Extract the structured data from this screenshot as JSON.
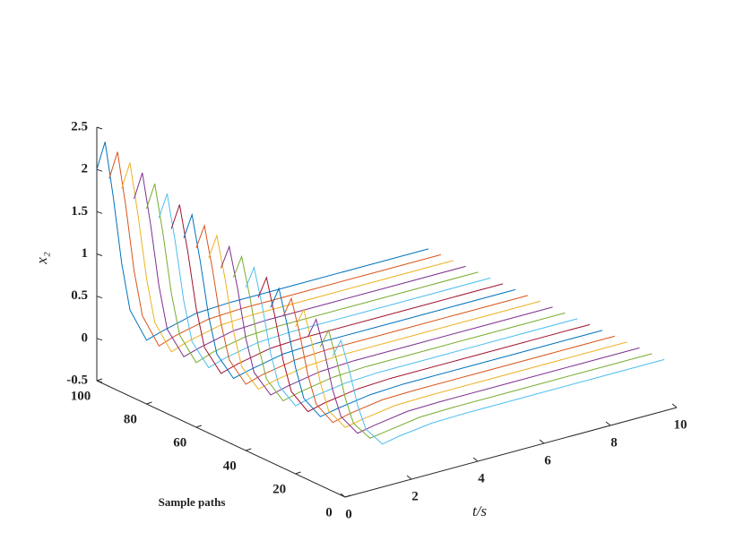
{
  "chart_data": {
    "type": "waterfall3d",
    "zlabel": "x₂",
    "xlabel": "t/s",
    "ylabel": "Sample paths",
    "x": [
      0,
      0.25,
      0.5,
      0.75,
      1,
      1.5,
      2,
      3,
      4,
      6,
      8,
      10
    ],
    "xlim": [
      0,
      10
    ],
    "xticks": [
      0,
      2,
      4,
      6,
      8,
      10
    ],
    "ylim": [
      0,
      100
    ],
    "yticks": [
      0,
      20,
      40,
      60,
      80,
      100
    ],
    "zlim": [
      -0.5,
      2.5
    ],
    "zticks": [
      -0.5,
      0,
      0.5,
      1,
      1.5,
      2,
      2.5
    ],
    "series": [
      {
        "path": 100,
        "color": "#0072BD",
        "values": [
          2.0,
          2.3,
          1.61,
          0.81,
          0.23,
          -0.18,
          -0.12,
          -0.02,
          0,
          0,
          0,
          0
        ]
      },
      {
        "path": 95,
        "color": "#D95319",
        "values": [
          1.96,
          2.25,
          1.58,
          0.79,
          0.23,
          -0.18,
          -0.11,
          -0.02,
          0,
          0,
          0,
          0
        ]
      },
      {
        "path": 90,
        "color": "#EDB120",
        "values": [
          1.91,
          2.19,
          1.53,
          0.77,
          0.22,
          -0.18,
          -0.11,
          -0.02,
          0,
          0,
          0,
          0
        ]
      },
      {
        "path": 85,
        "color": "#7E2F8E",
        "values": [
          1.86,
          2.14,
          1.5,
          0.75,
          0.21,
          -0.17,
          -0.11,
          -0.02,
          0,
          0,
          0,
          0
        ]
      },
      {
        "path": 80,
        "color": "#77AC30",
        "values": [
          1.81,
          2.08,
          1.46,
          0.73,
          0.21,
          -0.17,
          -0.1,
          -0.02,
          0,
          0,
          0,
          0
        ]
      },
      {
        "path": 75,
        "color": "#4DBEEE",
        "values": [
          1.77,
          2.03,
          1.42,
          0.71,
          0.2,
          -0.16,
          -0.1,
          -0.02,
          0,
          0,
          0,
          0
        ]
      },
      {
        "path": 70,
        "color": "#A2142F",
        "values": [
          1.71,
          1.97,
          1.38,
          0.69,
          0.2,
          -0.16,
          -0.1,
          -0.02,
          0,
          0,
          0,
          0
        ]
      },
      {
        "path": 65,
        "color": "#0072BD",
        "values": [
          1.67,
          1.92,
          1.34,
          0.67,
          0.19,
          -0.15,
          -0.1,
          -0.02,
          0,
          0,
          0,
          0
        ]
      },
      {
        "path": 60,
        "color": "#D95319",
        "values": [
          1.62,
          1.86,
          1.3,
          0.65,
          0.19,
          -0.15,
          -0.09,
          -0.02,
          0,
          0,
          0,
          0
        ]
      },
      {
        "path": 55,
        "color": "#EDB120",
        "values": [
          1.57,
          1.81,
          1.27,
          0.63,
          0.18,
          -0.14,
          -0.09,
          -0.02,
          0,
          0,
          0,
          0
        ]
      },
      {
        "path": 50,
        "color": "#7E2F8E",
        "values": [
          1.52,
          1.75,
          1.23,
          0.61,
          0.18,
          -0.14,
          -0.09,
          -0.02,
          0,
          0,
          0,
          0
        ]
      },
      {
        "path": 45,
        "color": "#77AC30",
        "values": [
          1.48,
          1.7,
          1.19,
          0.6,
          0.17,
          -0.14,
          -0.09,
          -0.02,
          0,
          0,
          0,
          0
        ]
      },
      {
        "path": 40,
        "color": "#4DBEEE",
        "values": [
          1.43,
          1.64,
          1.15,
          0.57,
          0.16,
          -0.13,
          -0.08,
          -0.02,
          0,
          0,
          0,
          0
        ]
      },
      {
        "path": 35,
        "color": "#A2142F",
        "values": [
          1.38,
          1.59,
          1.11,
          0.56,
          0.16,
          -0.13,
          -0.08,
          -0.02,
          0,
          0,
          0,
          0
        ]
      },
      {
        "path": 30,
        "color": "#0072BD",
        "values": [
          1.33,
          1.53,
          1.07,
          0.54,
          0.15,
          -0.12,
          -0.08,
          -0.02,
          0,
          0,
          0,
          0
        ]
      },
      {
        "path": 25,
        "color": "#D95319",
        "values": [
          1.29,
          1.48,
          1.04,
          0.52,
          0.15,
          -0.12,
          -0.07,
          -0.01,
          0,
          0,
          0,
          0
        ]
      },
      {
        "path": 20,
        "color": "#EDB120",
        "values": [
          1.24,
          1.42,
          0.99,
          0.5,
          0.14,
          -0.11,
          -0.07,
          -0.01,
          0,
          0,
          0,
          0
        ]
      },
      {
        "path": 15,
        "color": "#7E2F8E",
        "values": [
          1.19,
          1.37,
          0.96,
          0.48,
          0.14,
          -0.11,
          -0.07,
          -0.01,
          0,
          0,
          0,
          0
        ]
      },
      {
        "path": 10,
        "color": "#77AC30",
        "values": [
          1.14,
          1.31,
          0.92,
          0.46,
          0.13,
          -0.1,
          -0.07,
          -0.01,
          0,
          0,
          0,
          0
        ]
      },
      {
        "path": 5,
        "color": "#4DBEEE",
        "values": [
          1.1,
          1.26,
          0.88,
          0.44,
          0.13,
          -0.1,
          -0.06,
          -0.01,
          0,
          0,
          0,
          0
        ]
      }
    ]
  }
}
